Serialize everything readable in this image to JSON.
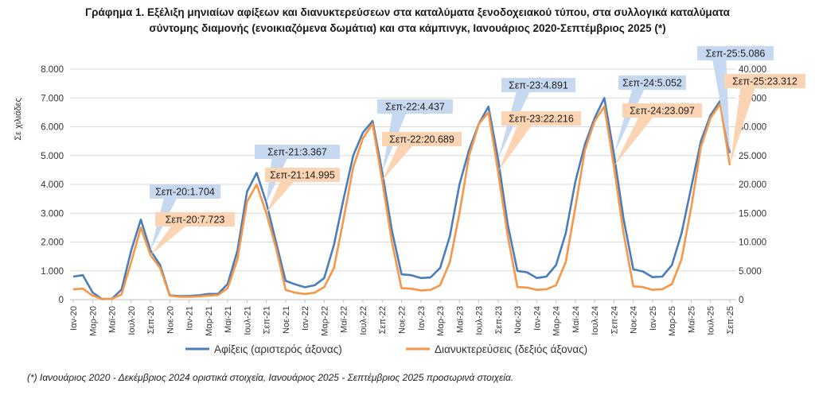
{
  "chart_data": {
    "type": "line",
    "title_line1": "Γράφημα 1. Εξέλιξη μηνιαίων αφίξεων και διανυκτερεύσεων στα καταλύματα ξενοδοχειακού τύπου, στα συλλογικά καταλύματα",
    "title_line2": "σύντομης διαμονής (ενοικιαζόμενα δωμάτια) και στα κάμπινγκ, Ιανουάριος 2020-Σεπτέμβριος 2025 (*)",
    "ylabel": "Σε χιλιάδες",
    "ylim_left": [
      0,
      8000
    ],
    "ylim_right": [
      0,
      40000
    ],
    "left_ticks": [
      "0",
      "1.000",
      "2.000",
      "3.000",
      "4.000",
      "5.000",
      "6.000",
      "7.000",
      "8.000"
    ],
    "right_ticks": [
      "0",
      "5.000",
      "10.000",
      "15.000",
      "20.000",
      "25.000",
      "30.000",
      "35.000",
      "40.000"
    ],
    "x_tick_labels": [
      "Ιαν-20",
      "Μαρ-20",
      "Μαϊ-20",
      "Ιουλ-20",
      "Σεπ-20",
      "Νοε-20",
      "Ιαν-21",
      "Μαρ-21",
      "Μαϊ-21",
      "Ιουλ-21",
      "Σεπ-21",
      "Νοε-21",
      "Ιαν-22",
      "Μαρ-22",
      "Μαϊ-22",
      "Ιουλ-22",
      "Σεπ-22",
      "Νοε-22",
      "Ιαν-23",
      "Μαρ-23",
      "Μαϊ-23",
      "Ιουλ-23",
      "Σεπ-23",
      "Νοε-23",
      "Ιαν-24",
      "Μαρ-24",
      "Μαϊ-24",
      "Ιουλ-24",
      "Σεπ-24",
      "Νοε-24",
      "Ιαν-25",
      "Μαρ-25",
      "Μαϊ-25",
      "Ιουλ-25",
      "Σεπ-25"
    ],
    "grid": true,
    "legend_placement": "bottom",
    "series": [
      {
        "name": "Αφίξεις (αριστερός άξονας)",
        "axis": "left",
        "color": "#4a7ebb",
        "values": [
          800,
          850,
          250,
          20,
          30,
          350,
          1700,
          2780,
          1704,
          1200,
          150,
          120,
          130,
          150,
          200,
          200,
          550,
          1700,
          3750,
          4400,
          3367,
          2000,
          650,
          530,
          430,
          500,
          750,
          1900,
          3500,
          5000,
          5800,
          6200,
          4437,
          2400,
          880,
          850,
          750,
          770,
          1100,
          2200,
          4000,
          5200,
          6100,
          6700,
          4891,
          2600,
          1000,
          950,
          750,
          800,
          1200,
          2300,
          4100,
          5400,
          6300,
          7000,
          5052,
          2800,
          1050,
          980,
          780,
          800,
          1200,
          2300,
          3900,
          5500,
          6400,
          6900,
          5086
        ]
      },
      {
        "name": "Διανυκτερεύσεις (δεξιός άξονας)",
        "axis": "right",
        "color": "#f79646",
        "values": [
          1800,
          1900,
          700,
          100,
          150,
          900,
          6500,
          12500,
          7723,
          5500,
          700,
          500,
          500,
          550,
          700,
          800,
          2000,
          7000,
          17000,
          20000,
          14995,
          9000,
          1700,
          1200,
          1000,
          1200,
          2200,
          5500,
          14000,
          23000,
          28000,
          30500,
          20689,
          10000,
          2000,
          1900,
          1600,
          1700,
          2500,
          6500,
          15000,
          25000,
          30500,
          32500,
          22216,
          11000,
          2200,
          2100,
          1700,
          1800,
          2500,
          6500,
          16000,
          26000,
          31000,
          33500,
          23097,
          11500,
          2300,
          2200,
          1700,
          1800,
          2700,
          7000,
          16000,
          26500,
          31500,
          34000,
          23312
        ]
      }
    ],
    "annotations": [
      {
        "series": 0,
        "index": 8,
        "text": "Σεπ-20:1.704"
      },
      {
        "series": 1,
        "index": 8,
        "text": "Σεπ-20:7.723"
      },
      {
        "series": 0,
        "index": 20,
        "text": "Σεπ-21:3.367"
      },
      {
        "series": 1,
        "index": 20,
        "text": "Σεπ-21:14.995"
      },
      {
        "series": 0,
        "index": 32,
        "text": "Σεπ-22:4.437"
      },
      {
        "series": 1,
        "index": 32,
        "text": "Σεπ-22:20.689"
      },
      {
        "series": 0,
        "index": 44,
        "text": "Σεπ-23:4.891"
      },
      {
        "series": 1,
        "index": 44,
        "text": "Σεπ-23:22.216"
      },
      {
        "series": 0,
        "index": 56,
        "text": "Σεπ-24:5.052"
      },
      {
        "series": 1,
        "index": 56,
        "text": "Σεπ-24:23.097"
      },
      {
        "series": 0,
        "index": 68,
        "text": "Σεπ-25:5.086"
      },
      {
        "series": 1,
        "index": 68,
        "text": "Σεπ-25:23.312"
      }
    ],
    "footnote": "(*) Ιανουάριος 2020 - Δεκέμβριος 2024 οριστικά στοιχεία, Ιανουάριος 2025 - Σεπτέμβριος 2025 προσωρινά στοιχεία."
  }
}
